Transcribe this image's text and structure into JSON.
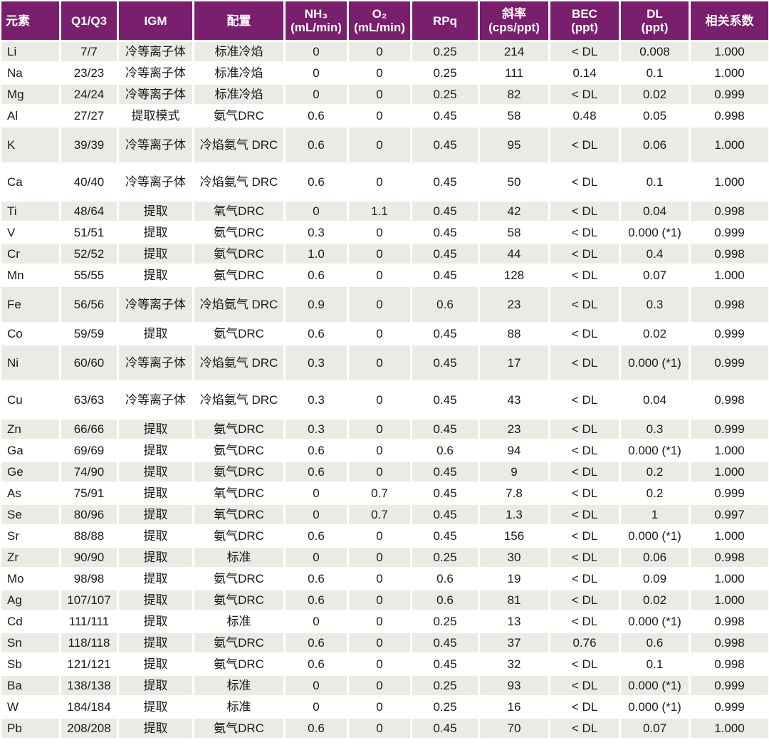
{
  "table": {
    "headers": [
      {
        "key": "element",
        "lines": [
          "元素"
        ]
      },
      {
        "key": "q1q3",
        "lines": [
          "Q1/Q3"
        ]
      },
      {
        "key": "igm",
        "lines": [
          "IGM"
        ]
      },
      {
        "key": "config",
        "lines": [
          "配置"
        ]
      },
      {
        "key": "nh3",
        "lines": [
          "NH₃",
          "(mL/min)"
        ]
      },
      {
        "key": "o2",
        "lines": [
          "O₂",
          "(mL/min)"
        ]
      },
      {
        "key": "rpq",
        "lines": [
          "RPq"
        ]
      },
      {
        "key": "slope",
        "lines": [
          "斜率",
          "(cps/ppt)"
        ]
      },
      {
        "key": "bec",
        "lines": [
          "BEC",
          "(ppt)"
        ]
      },
      {
        "key": "dl",
        "lines": [
          "DL",
          "(ppt)"
        ]
      },
      {
        "key": "r",
        "lines": [
          "相关系数"
        ]
      }
    ],
    "rows": [
      [
        "Li",
        "7/7",
        "冷等离子体",
        "标准冷焰",
        "0",
        "0",
        "0.25",
        "214",
        "< DL",
        "0.008",
        "1.000"
      ],
      [
        "Na",
        "23/23",
        "冷等离子体",
        "标准冷焰",
        "0",
        "0",
        "0.25",
        "111",
        "0.14",
        "0.1",
        "1.000"
      ],
      [
        "Mg",
        "24/24",
        "冷等离子体",
        "标准冷焰",
        "0",
        "0",
        "0.25",
        "82",
        "< DL",
        "0.02",
        "0.999"
      ],
      [
        "Al",
        "27/27",
        "提取模式",
        "氨气DRC",
        "0.6",
        "0",
        "0.45",
        "58",
        "0.48",
        "0.05",
        "0.998"
      ],
      [
        "K",
        "39/39",
        "冷等离子体",
        "冷焰氨气 DRC",
        "0.6",
        "0",
        "0.45",
        "95",
        "< DL",
        "0.06",
        "1.000"
      ],
      [
        "Ca",
        "40/40",
        "冷等离子体",
        "冷焰氨气 DRC",
        "0.6",
        "0",
        "0.45",
        "50",
        "< DL",
        "0.1",
        "1.000"
      ],
      [
        "Ti",
        "48/64",
        "提取",
        "氧气DRC",
        "0",
        "1.1",
        "0.45",
        "42",
        "< DL",
        "0.04",
        "0.998"
      ],
      [
        "V",
        "51/51",
        "提取",
        "氨气DRC",
        "0.3",
        "0",
        "0.45",
        "58",
        "< DL",
        "0.000 (*1)",
        "0.999"
      ],
      [
        "Cr",
        "52/52",
        "提取",
        "氨气DRC",
        "1.0",
        "0",
        "0.45",
        "44",
        "< DL",
        "0.4",
        "0.998"
      ],
      [
        "Mn",
        "55/55",
        "提取",
        "氨气DRC",
        "0.6",
        "0",
        "0.45",
        "128",
        "< DL",
        "0.07",
        "1.000"
      ],
      [
        "Fe",
        "56/56",
        "冷等离子体",
        "冷焰氨气 DRC",
        "0.9",
        "0",
        "0.6",
        "23",
        "< DL",
        "0.3",
        "0.998"
      ],
      [
        "Co",
        "59/59",
        "提取",
        "氨气DRC",
        "0.6",
        "0",
        "0.45",
        "88",
        "< DL",
        "0.02",
        "0.999"
      ],
      [
        "Ni",
        "60/60",
        "冷等离子体",
        "冷焰氨气 DRC",
        "0.3",
        "0",
        "0.45",
        "17",
        "< DL",
        "0.000 (*1)",
        "0.999"
      ],
      [
        "Cu",
        "63/63",
        "冷等离子体",
        "冷焰氨气 DRC",
        "0.3",
        "0",
        "0.45",
        "43",
        "< DL",
        "0.04",
        "0.998"
      ],
      [
        "Zn",
        "66/66",
        "提取",
        "氨气DRC",
        "0.3",
        "0",
        "0.45",
        "23",
        "< DL",
        "0.3",
        "0.999"
      ],
      [
        "Ga",
        "69/69",
        "提取",
        "氨气DRC",
        "0.6",
        "0",
        "0.6",
        "94",
        "< DL",
        "0.000 (*1)",
        "1.000"
      ],
      [
        "Ge",
        "74/90",
        "提取",
        "氨气DRC",
        "0.6",
        "0",
        "0.45",
        "9",
        "< DL",
        "0.2",
        "1.000"
      ],
      [
        "As",
        "75/91",
        "提取",
        "氧气DRC",
        "0",
        "0.7",
        "0.45",
        "7.8",
        "< DL",
        "0.2",
        "0.999"
      ],
      [
        "Se",
        "80/96",
        "提取",
        "氧气DRC",
        "0",
        "0.7",
        "0.45",
        "1.3",
        "< DL",
        "1",
        "0.997"
      ],
      [
        "Sr",
        "88/88",
        "提取",
        "氨气DRC",
        "0.6",
        "0",
        "0.45",
        "156",
        "< DL",
        "0.000 (*1)",
        "1.000"
      ],
      [
        "Zr",
        "90/90",
        "提取",
        "标准",
        "0",
        "0",
        "0.25",
        "30",
        "< DL",
        "0.06",
        "0.998"
      ],
      [
        "Mo",
        "98/98",
        "提取",
        "氨气DRC",
        "0.6",
        "0",
        "0.6",
        "19",
        "< DL",
        "0.09",
        "1.000"
      ],
      [
        "Ag",
        "107/107",
        "提取",
        "氨气DRC",
        "0.6",
        "0",
        "0.6",
        "81",
        "< DL",
        "0.02",
        "1.000"
      ],
      [
        "Cd",
        "111/111",
        "提取",
        "标准",
        "0",
        "0",
        "0.25",
        "13",
        "< DL",
        "0.000 (*1)",
        "0.998"
      ],
      [
        "Sn",
        "118/118",
        "提取",
        "氨气DRC",
        "0.6",
        "0",
        "0.45",
        "37",
        "0.76",
        "0.6",
        "0.998"
      ],
      [
        "Sb",
        "121/121",
        "提取",
        "氨气DRC",
        "0.6",
        "0",
        "0.45",
        "32",
        "< DL",
        "0.1",
        "0.998"
      ],
      [
        "Ba",
        "138/138",
        "提取",
        "标准",
        "0",
        "0",
        "0.25",
        "93",
        "< DL",
        "0.000 (*1)",
        "0.999"
      ],
      [
        "W",
        "184/184",
        "提取",
        "标准",
        "0",
        "0",
        "0.25",
        "16",
        "< DL",
        "0.000 (*1)",
        "0.999"
      ],
      [
        "Pb",
        "208/208",
        "提取",
        "氨气DRC",
        "0.6",
        "0",
        "0.45",
        "70",
        "< DL",
        "0.07",
        "1.000"
      ]
    ]
  }
}
